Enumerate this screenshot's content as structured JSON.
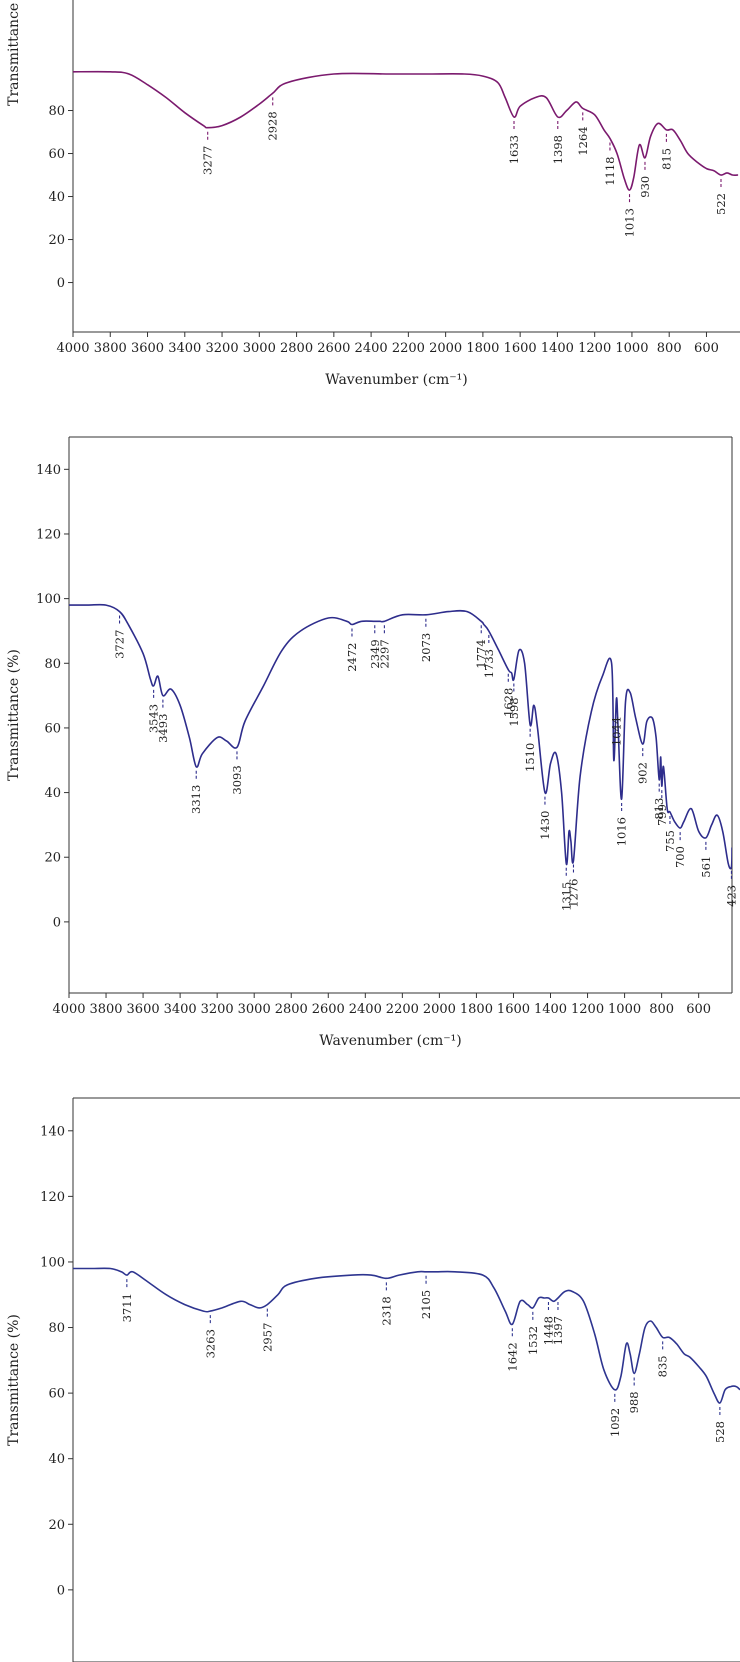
{
  "colors": {
    "spectrum_1": "#7b1a6e",
    "spectrum_2": "#2e2d8c",
    "spectrum_3": "#2e3590",
    "axis": "#333333"
  },
  "chart_data": [
    {
      "type": "line",
      "xlabel": "Wavenumber (cm⁻¹)",
      "ylabel": "Transmittance (%)",
      "xlim": [
        4000,
        420
      ],
      "x_reversed": true,
      "ylim": [
        -23,
        150
      ],
      "x_ticks": [
        4000,
        3800,
        3600,
        3400,
        3200,
        3000,
        2800,
        2600,
        2400,
        2200,
        2000,
        1800,
        1600,
        1400,
        1200,
        1000,
        800,
        600
      ],
      "y_ticks": [
        80,
        60,
        40,
        20,
        0
      ],
      "series": [
        {
          "x": [
            4000,
            3800,
            3700,
            3600,
            3500,
            3400,
            3300,
            3277,
            3200,
            3100,
            3000,
            2928,
            2850,
            2600,
            2300,
            2100,
            1900,
            1800,
            1720,
            1680,
            1633,
            1600,
            1520,
            1460,
            1398,
            1350,
            1300,
            1264,
            1200,
            1150,
            1118,
            1080,
            1040,
            1013,
            990,
            960,
            930,
            900,
            860,
            815,
            780,
            740,
            700,
            650,
            600,
            560,
            522,
            490,
            460,
            430
          ],
          "y": [
            98,
            98,
            97,
            92,
            86,
            79,
            73,
            72,
            73,
            77,
            83,
            88,
            93,
            97,
            97,
            97,
            97,
            96,
            93,
            86,
            77,
            82,
            86,
            86,
            77,
            80,
            84,
            81,
            78,
            71,
            67,
            60,
            48,
            43,
            49,
            64,
            58,
            68,
            74,
            71,
            71,
            66,
            60,
            56,
            53,
            52,
            50,
            51,
            50,
            50
          ]
        }
      ],
      "peaks": [
        {
          "label": "3277",
          "x": 3277,
          "y": 72
        },
        {
          "label": "2928",
          "x": 2928,
          "y": 88
        },
        {
          "label": "1633",
          "x": 1633,
          "y": 77
        },
        {
          "label": "1398",
          "x": 1398,
          "y": 77
        },
        {
          "label": "1264",
          "x": 1264,
          "y": 81
        },
        {
          "label": "1118",
          "x": 1118,
          "y": 67
        },
        {
          "label": "1013",
          "x": 1013,
          "y": 43
        },
        {
          "label": "930",
          "x": 930,
          "y": 58
        },
        {
          "label": "815",
          "x": 815,
          "y": 71
        },
        {
          "label": "522",
          "x": 522,
          "y": 50
        }
      ]
    },
    {
      "type": "line",
      "xlabel": "Wavenumber (cm⁻¹)",
      "ylabel": "Transmittance (%)",
      "xlim": [
        4000,
        420
      ],
      "x_reversed": true,
      "ylim": [
        -22,
        150
      ],
      "x_ticks": [
        4000,
        3800,
        3600,
        3400,
        3200,
        3000,
        2800,
        2600,
        2400,
        2200,
        2000,
        1800,
        1600,
        1400,
        1200,
        1000,
        800,
        600
      ],
      "y_ticks": [
        140,
        120,
        100,
        80,
        60,
        40,
        20,
        0
      ],
      "series": [
        {
          "x": [
            4000,
            3900,
            3800,
            3727,
            3680,
            3600,
            3560,
            3543,
            3520,
            3493,
            3450,
            3400,
            3350,
            3313,
            3280,
            3200,
            3150,
            3093,
            3050,
            2950,
            2850,
            2750,
            2600,
            2500,
            2472,
            2420,
            2349,
            2320,
            2297,
            2200,
            2073,
            1950,
            1850,
            1774,
            1760,
            1733,
            1680,
            1628,
            1610,
            1598,
            1570,
            1540,
            1510,
            1490,
            1470,
            1430,
            1400,
            1370,
            1340,
            1315,
            1300,
            1290,
            1276,
            1240,
            1180,
            1120,
            1070,
            1058,
            1044,
            1035,
            1016,
            995,
            970,
            940,
            902,
            880,
            850,
            830,
            813,
            805,
            799,
            790,
            770,
            755,
            730,
            700,
            680,
            640,
            600,
            561,
            530,
            500,
            470,
            440,
            423,
            420
          ],
          "y": [
            98,
            98,
            98,
            96,
            92,
            83,
            75,
            73,
            76,
            70,
            72,
            67,
            57,
            48,
            52,
            57,
            56,
            54,
            62,
            73,
            84,
            90,
            94,
            93,
            92,
            93,
            93,
            93,
            93,
            95,
            95,
            96,
            96,
            93,
            92,
            90,
            84,
            78,
            77,
            75,
            84,
            80,
            61,
            67,
            60,
            40,
            49,
            52,
            40,
            18,
            28,
            25,
            19,
            45,
            65,
            76,
            80,
            50,
            69,
            60,
            38,
            68,
            71,
            63,
            55,
            62,
            63,
            57,
            44,
            51,
            42,
            48,
            35,
            34,
            31,
            29,
            31,
            35,
            28,
            26,
            30,
            33,
            28,
            18,
            17,
            23
          ]
        }
      ],
      "peaks": [
        {
          "label": "3727",
          "x": 3727,
          "y": 96
        },
        {
          "label": "3543",
          "x": 3543,
          "y": 73
        },
        {
          "label": "3493",
          "x": 3493,
          "y": 70
        },
        {
          "label": "3313",
          "x": 3313,
          "y": 48
        },
        {
          "label": "3093",
          "x": 3093,
          "y": 54
        },
        {
          "label": "2472",
          "x": 2472,
          "y": 92
        },
        {
          "label": "2349",
          "x": 2349,
          "y": 93
        },
        {
          "label": "2297",
          "x": 2297,
          "y": 93
        },
        {
          "label": "2073",
          "x": 2073,
          "y": 95
        },
        {
          "label": "1774",
          "x": 1774,
          "y": 93
        },
        {
          "label": "1733",
          "x": 1733,
          "y": 90
        },
        {
          "label": "1628",
          "x": 1628,
          "y": 78
        },
        {
          "label": "1598",
          "x": 1598,
          "y": 75
        },
        {
          "label": "1510",
          "x": 1510,
          "y": 61
        },
        {
          "label": "1430",
          "x": 1430,
          "y": 40
        },
        {
          "label": "1315",
          "x": 1315,
          "y": 18
        },
        {
          "label": "1276",
          "x": 1276,
          "y": 19
        },
        {
          "label": "1044",
          "x": 1044,
          "y": 69
        },
        {
          "label": "1016",
          "x": 1016,
          "y": 38
        },
        {
          "label": "902",
          "x": 902,
          "y": 55
        },
        {
          "label": "813",
          "x": 813,
          "y": 44
        },
        {
          "label": "799",
          "x": 799,
          "y": 42
        },
        {
          "label": "755",
          "x": 755,
          "y": 34
        },
        {
          "label": "700",
          "x": 700,
          "y": 29
        },
        {
          "label": "561",
          "x": 561,
          "y": 26
        },
        {
          "label": "423",
          "x": 423,
          "y": 17
        }
      ]
    },
    {
      "type": "line",
      "xlabel": "",
      "ylabel": "Transmittance (%)",
      "xlim": [
        4000,
        420
      ],
      "x_reversed": true,
      "ylim": [
        -22,
        150
      ],
      "x_ticks": [],
      "y_ticks": [
        140,
        120,
        100,
        80,
        60,
        40,
        20,
        0
      ],
      "series": [
        {
          "x": [
            4000,
            3900,
            3800,
            3740,
            3711,
            3680,
            3600,
            3500,
            3400,
            3300,
            3263,
            3200,
            3100,
            3050,
            3000,
            2957,
            2900,
            2850,
            2700,
            2500,
            2400,
            2318,
            2250,
            2150,
            2105,
            2050,
            1950,
            1800,
            1740,
            1680,
            1642,
            1600,
            1560,
            1532,
            1500,
            1470,
            1448,
            1420,
            1397,
            1360,
            1320,
            1260,
            1200,
            1150,
            1092,
            1060,
            1030,
            1010,
            988,
            960,
            930,
            900,
            870,
            835,
            800,
            760,
            720,
            690,
            640,
            600,
            560,
            528,
            500,
            470,
            440,
            420
          ],
          "y": [
            98,
            98,
            98,
            97,
            96,
            97,
            94,
            90,
            87,
            85,
            85,
            86,
            88,
            87,
            86,
            87,
            90,
            93,
            95,
            96,
            96,
            95,
            96,
            97,
            97,
            97,
            97,
            96,
            92,
            85,
            81,
            88,
            87,
            86,
            89,
            89,
            89,
            88,
            89,
            91,
            91,
            88,
            78,
            67,
            61,
            65,
            75,
            72,
            66,
            72,
            80,
            82,
            80,
            77,
            77,
            75,
            72,
            71,
            68,
            65,
            60,
            57,
            61,
            62,
            62,
            61
          ]
        }
      ],
      "peaks": [
        {
          "label": "3711",
          "x": 3711,
          "y": 96
        },
        {
          "label": "3263",
          "x": 3263,
          "y": 85
        },
        {
          "label": "2957",
          "x": 2957,
          "y": 87
        },
        {
          "label": "2318",
          "x": 2318,
          "y": 95
        },
        {
          "label": "2105",
          "x": 2105,
          "y": 97
        },
        {
          "label": "1642",
          "x": 1642,
          "y": 81
        },
        {
          "label": "1532",
          "x": 1532,
          "y": 86
        },
        {
          "label": "1448",
          "x": 1448,
          "y": 89
        },
        {
          "label": "1397",
          "x": 1397,
          "y": 89
        },
        {
          "label": "1092",
          "x": 1092,
          "y": 61
        },
        {
          "label": "988",
          "x": 988,
          "y": 66
        },
        {
          "label": "835",
          "x": 835,
          "y": 77
        },
        {
          "label": "528",
          "x": 528,
          "y": 57
        }
      ]
    }
  ]
}
